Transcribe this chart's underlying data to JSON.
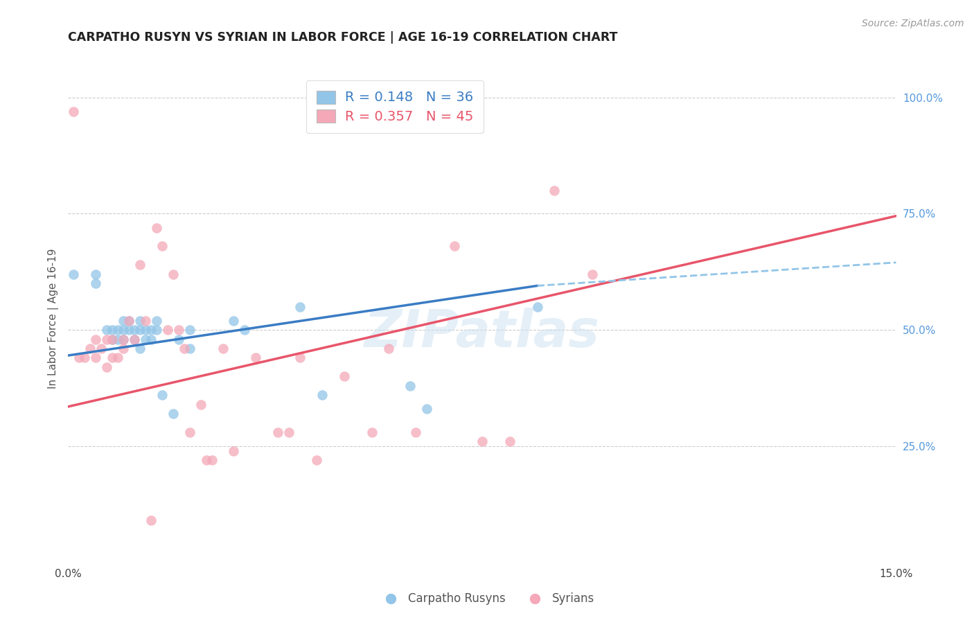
{
  "title": "CARPATHO RUSYN VS SYRIAN IN LABOR FORCE | AGE 16-19 CORRELATION CHART",
  "source_text": "Source: ZipAtlas.com",
  "ylabel": "In Labor Force | Age 16-19",
  "xlim": [
    0.0,
    0.15
  ],
  "ylim": [
    0.0,
    1.05
  ],
  "blue_R": 0.148,
  "blue_N": 36,
  "pink_R": 0.357,
  "pink_N": 45,
  "blue_color": "#92C5E8",
  "pink_color": "#F4A8B8",
  "blue_line_color": "#3A7CC4",
  "pink_line_color": "#E8556A",
  "blue_dash_color": "#92C5E8",
  "watermark": "ZIPatlas",
  "legend_label_blue": "Carpatho Rusyns",
  "legend_label_pink": "Syrians",
  "blue_x": [
    0.001,
    0.005,
    0.005,
    0.007,
    0.008,
    0.008,
    0.009,
    0.009,
    0.01,
    0.01,
    0.01,
    0.011,
    0.011,
    0.012,
    0.012,
    0.013,
    0.013,
    0.013,
    0.014,
    0.014,
    0.015,
    0.015,
    0.016,
    0.016,
    0.017,
    0.019,
    0.02,
    0.022,
    0.022,
    0.03,
    0.032,
    0.042,
    0.046,
    0.062,
    0.065,
    0.085
  ],
  "blue_y": [
    0.62,
    0.62,
    0.6,
    0.5,
    0.5,
    0.48,
    0.5,
    0.48,
    0.52,
    0.5,
    0.48,
    0.52,
    0.5,
    0.5,
    0.48,
    0.52,
    0.5,
    0.46,
    0.5,
    0.48,
    0.5,
    0.48,
    0.52,
    0.5,
    0.36,
    0.32,
    0.48,
    0.5,
    0.46,
    0.52,
    0.5,
    0.55,
    0.36,
    0.38,
    0.33,
    0.55
  ],
  "pink_x": [
    0.001,
    0.002,
    0.003,
    0.004,
    0.005,
    0.005,
    0.006,
    0.007,
    0.007,
    0.008,
    0.008,
    0.009,
    0.01,
    0.01,
    0.011,
    0.012,
    0.013,
    0.014,
    0.015,
    0.016,
    0.017,
    0.018,
    0.019,
    0.02,
    0.021,
    0.022,
    0.024,
    0.025,
    0.026,
    0.028,
    0.03,
    0.034,
    0.038,
    0.04,
    0.042,
    0.045,
    0.05,
    0.055,
    0.058,
    0.063,
    0.07,
    0.075,
    0.08,
    0.088,
    0.095
  ],
  "pink_y": [
    0.97,
    0.44,
    0.44,
    0.46,
    0.48,
    0.44,
    0.46,
    0.48,
    0.42,
    0.48,
    0.44,
    0.44,
    0.48,
    0.46,
    0.52,
    0.48,
    0.64,
    0.52,
    0.09,
    0.72,
    0.68,
    0.5,
    0.62,
    0.5,
    0.46,
    0.28,
    0.34,
    0.22,
    0.22,
    0.46,
    0.24,
    0.44,
    0.28,
    0.28,
    0.44,
    0.22,
    0.4,
    0.28,
    0.46,
    0.28,
    0.68,
    0.26,
    0.26,
    0.8,
    0.62
  ]
}
